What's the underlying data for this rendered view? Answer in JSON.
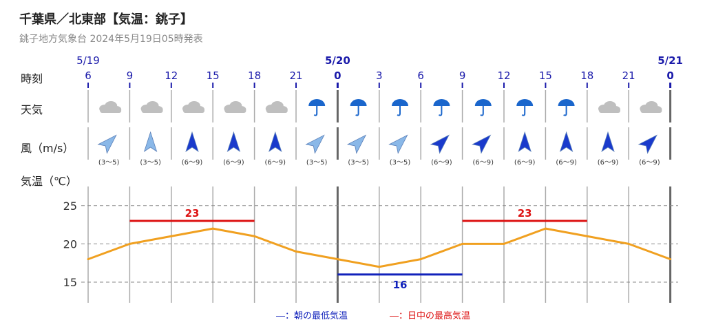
{
  "header": {
    "title": "千葉県／北東部【気温：銚子】",
    "subtitle": "銚子地方気象台 2024年5月19日05時発表"
  },
  "rows": {
    "time": "時刻",
    "weather": "天気",
    "wind": "風（m/s）",
    "temp": "気温（℃）"
  },
  "colors": {
    "temp_line": "#f0a020",
    "max_line": "#dd1111",
    "min_line": "#1122bb",
    "date_label": "#1a1aaa",
    "hour_label": "#1a1aaa",
    "arrow_light": "#8ab8e8",
    "arrow_dark": "#1a3acc",
    "umbrella": "#1a66cc",
    "cloud": "#bfbfbf"
  },
  "chart_data": {
    "type": "line",
    "dates": [
      {
        "index": 0,
        "label": "5/19"
      },
      {
        "index": 6,
        "label": "5/20"
      },
      {
        "index": 14,
        "label": "5/21"
      }
    ],
    "hours": [
      "6",
      "9",
      "12",
      "15",
      "18",
      "21",
      "0",
      "3",
      "6",
      "9",
      "12",
      "15",
      "18",
      "21",
      "0"
    ],
    "weather": [
      "cloud-icon",
      "cloud-icon",
      "cloud-icon",
      "cloud-icon",
      "cloud-icon",
      "umbrella-icon",
      "umbrella-icon",
      "umbrella-icon",
      "umbrella-icon",
      "umbrella-icon",
      "umbrella-icon",
      "umbrella-icon",
      "cloud-icon",
      "cloud-icon"
    ],
    "wind": [
      {
        "range": "(3〜5)",
        "dir": "SW",
        "strength": "light"
      },
      {
        "range": "(3〜5)",
        "dir": "S",
        "strength": "light"
      },
      {
        "range": "(6〜9)",
        "dir": "S",
        "strength": "strong"
      },
      {
        "range": "(6〜9)",
        "dir": "S",
        "strength": "strong"
      },
      {
        "range": "(6〜9)",
        "dir": "S",
        "strength": "strong"
      },
      {
        "range": "(3〜5)",
        "dir": "SW",
        "strength": "light"
      },
      {
        "range": "(3〜5)",
        "dir": "SW",
        "strength": "light"
      },
      {
        "range": "(3〜5)",
        "dir": "SW",
        "strength": "light"
      },
      {
        "range": "(6〜9)",
        "dir": "SW",
        "strength": "strong"
      },
      {
        "range": "(6〜9)",
        "dir": "SW",
        "strength": "strong"
      },
      {
        "range": "(6〜9)",
        "dir": "S",
        "strength": "strong"
      },
      {
        "range": "(6〜9)",
        "dir": "S",
        "strength": "strong"
      },
      {
        "range": "(6〜9)",
        "dir": "S",
        "strength": "strong"
      },
      {
        "range": "(6〜9)",
        "dir": "SW",
        "strength": "strong"
      }
    ],
    "temperature": [
      18,
      20,
      21,
      22,
      21,
      19,
      18,
      17,
      18,
      20,
      20,
      22,
      21,
      20,
      18
    ],
    "yticks": [
      15,
      20,
      25
    ],
    "ylim": [
      12.3,
      27.5
    ],
    "grid": "dashed",
    "max_temps": [
      {
        "value": 23,
        "from": 1,
        "to": 4,
        "label": "23"
      },
      {
        "value": 23,
        "from": 9,
        "to": 12,
        "label": "23"
      }
    ],
    "min_temps": [
      {
        "value": 16,
        "from": 6,
        "to": 9,
        "label": "16"
      }
    ]
  },
  "legend": {
    "min_label": "―：朝の最低気温",
    "max_label": "―：日中の最高気温"
  }
}
